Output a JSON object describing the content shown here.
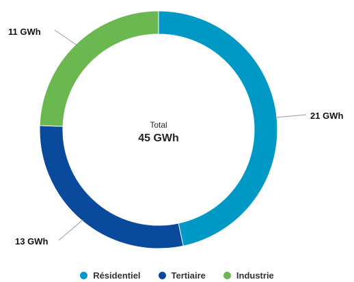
{
  "chart_data": {
    "type": "pie",
    "variant": "donut",
    "center": {
      "label": "Total",
      "value": "45 GWh"
    },
    "unit": "GWh",
    "slices": [
      {
        "name": "Résidentiel",
        "value": 21,
        "label": "21 GWh",
        "color": "#0099c6"
      },
      {
        "name": "Tertiaire",
        "value": 13,
        "label": "13 GWh",
        "color": "#0a4a9c"
      },
      {
        "name": "Industrie",
        "value": 11,
        "label": "11 GWh",
        "color": "#6ab84f"
      }
    ],
    "legend_position": "bottom"
  }
}
